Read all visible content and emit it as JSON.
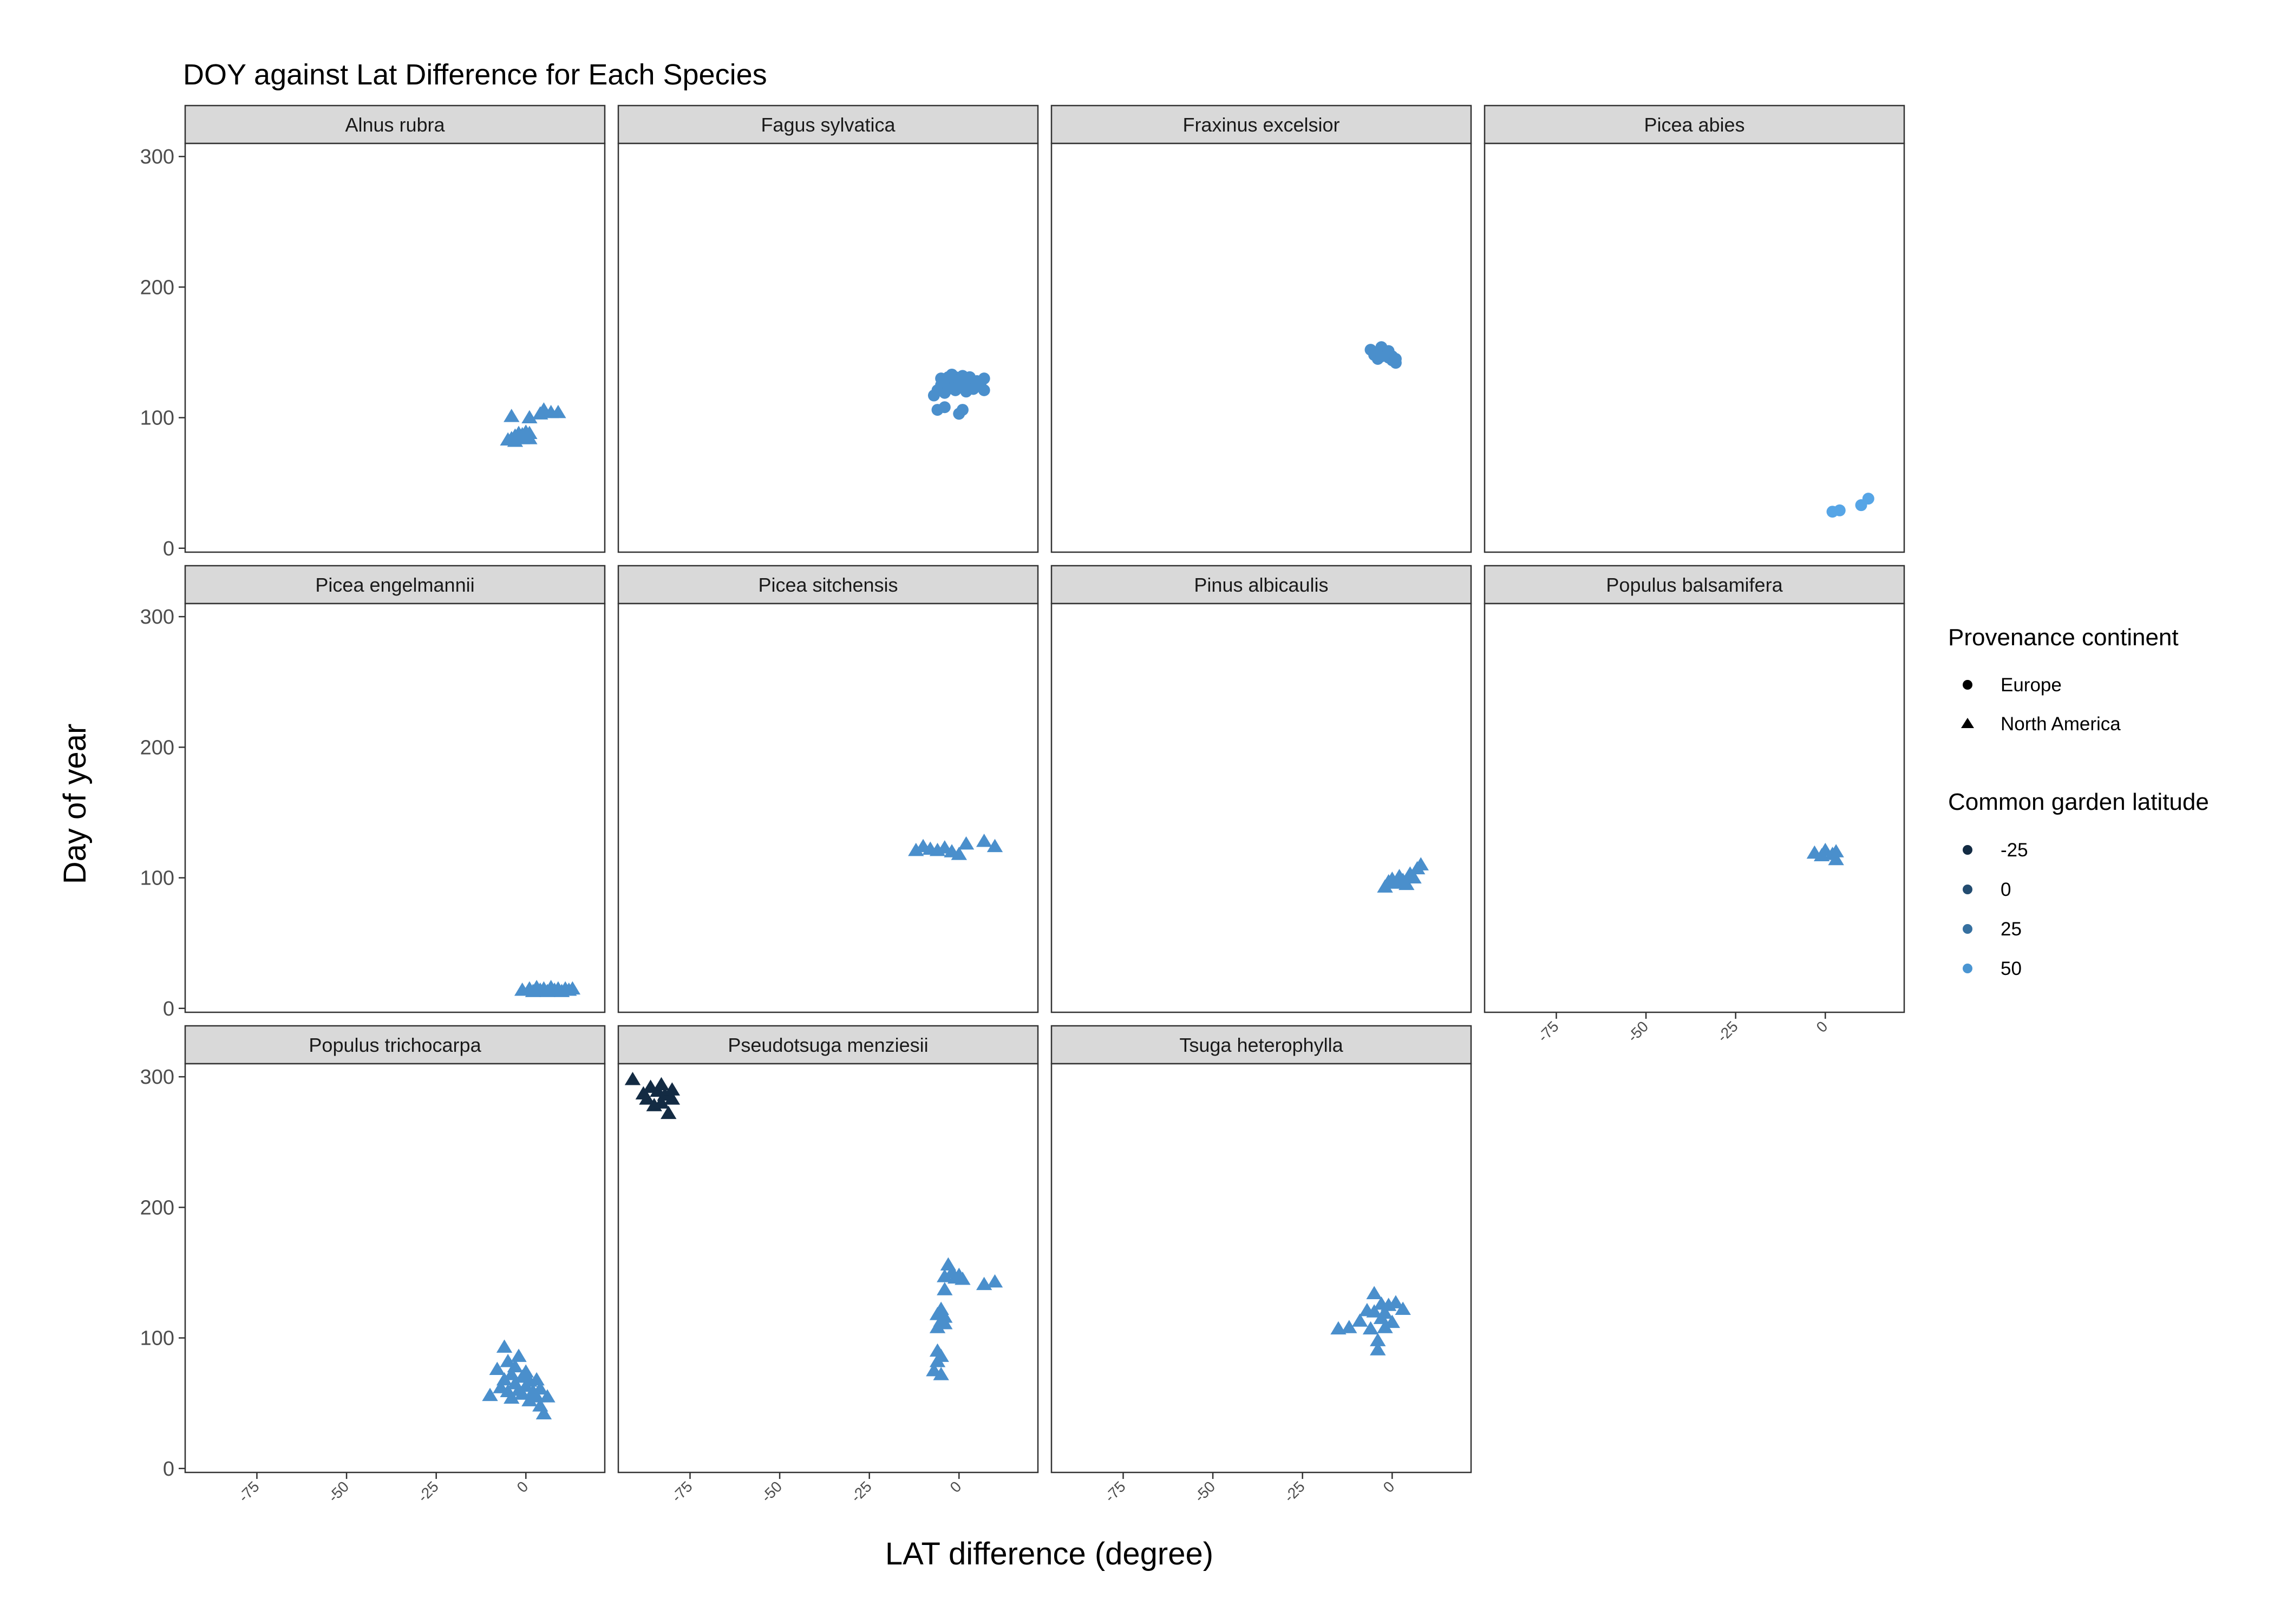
{
  "chart_data": {
    "type": "scatter",
    "title": "DOY against Lat Difference for Each Species",
    "xlabel": "LAT difference (degree)",
    "ylabel": "Day of year",
    "xlim": [
      -95,
      22
    ],
    "ylim": [
      -3,
      310
    ],
    "x_ticks": [
      -75,
      -50,
      -25,
      0
    ],
    "y_ticks": [
      0,
      100,
      200,
      300
    ],
    "grid": false,
    "ncol": 4,
    "legend": {
      "position": "right",
      "shape": {
        "title": "Provenance continent",
        "entries": [
          {
            "label": "Europe",
            "shape": "circle"
          },
          {
            "label": "North America",
            "shape": "triangle"
          }
        ]
      },
      "color": {
        "title": "Common garden latitude",
        "entries": [
          {
            "label": "-25",
            "color": "#132B43"
          },
          {
            "label": "0",
            "color": "#234C70"
          },
          {
            "label": "25",
            "color": "#3670A0"
          },
          {
            "label": "50",
            "color": "#4A95D2"
          }
        ]
      }
    },
    "panels": [
      {
        "label": "Alnus rubra",
        "series": [
          {
            "shape": "triangle",
            "color": "#4A8FCC",
            "points": [
              [
                -5,
                83
              ],
              [
                -4,
                84
              ],
              [
                -3,
                82
              ],
              [
                -3,
                86
              ],
              [
                -2,
                85
              ],
              [
                -2,
                88
              ],
              [
                -1,
                84
              ],
              [
                -1,
                87
              ],
              [
                0,
                86
              ],
              [
                0,
                89
              ],
              [
                1,
                84
              ],
              [
                1,
                88
              ],
              [
                -4,
                101
              ],
              [
                1,
                100
              ],
              [
                4,
                103
              ],
              [
                5,
                106
              ],
              [
                7,
                104
              ],
              [
                9,
                104
              ]
            ]
          }
        ]
      },
      {
        "label": "Fagus sylvatica",
        "series": [
          {
            "shape": "circle",
            "color": "#4A8FCC",
            "points": [
              [
                -7,
                117
              ],
              [
                -6,
                121
              ],
              [
                -5,
                125
              ],
              [
                -5,
                130
              ],
              [
                -4,
                128
              ],
              [
                -4,
                119
              ],
              [
                -3,
                131
              ],
              [
                -3,
                126
              ],
              [
                -3,
                122
              ],
              [
                -2,
                133
              ],
              [
                -2,
                129
              ],
              [
                -2,
                124
              ],
              [
                -1,
                127
              ],
              [
                -1,
                131
              ],
              [
                -1,
                121
              ],
              [
                0,
                125
              ],
              [
                0,
                129
              ],
              [
                1,
                132
              ],
              [
                1,
                124
              ],
              [
                2,
                128
              ],
              [
                2,
                120
              ],
              [
                3,
                126
              ],
              [
                3,
                131
              ],
              [
                4,
                122
              ],
              [
                5,
                128
              ],
              [
                6,
                125
              ],
              [
                7,
                130
              ],
              [
                7,
                121
              ],
              [
                -6,
                106
              ],
              [
                -4,
                108
              ],
              [
                0,
                103
              ],
              [
                1,
                106
              ]
            ]
          }
        ]
      },
      {
        "label": "Fraxinus excelsior",
        "series": [
          {
            "shape": "circle",
            "color": "#4A8FCC",
            "points": [
              [
                -6,
                152
              ],
              [
                -5,
                148
              ],
              [
                -4,
                150
              ],
              [
                -4,
                145
              ],
              [
                -3,
                154
              ],
              [
                -3,
                147
              ],
              [
                -2,
                149
              ],
              [
                -1,
                146
              ],
              [
                -1,
                151
              ],
              [
                0,
                144
              ],
              [
                0,
                147
              ],
              [
                1,
                142
              ],
              [
                1,
                145
              ]
            ]
          }
        ]
      },
      {
        "label": "Picea abies",
        "series": [
          {
            "shape": "circle",
            "color": "#56A5E6",
            "points": [
              [
                2,
                28
              ],
              [
                4,
                29
              ],
              [
                10,
                33
              ],
              [
                12,
                38
              ]
            ]
          }
        ]
      },
      {
        "label": "Picea engelmannii",
        "series": [
          {
            "shape": "triangle",
            "color": "#4A8FCC",
            "points": [
              [
                -1,
                14
              ],
              [
                1,
                15
              ],
              [
                2,
                13
              ],
              [
                3,
                16
              ],
              [
                4,
                14
              ],
              [
                5,
                15
              ],
              [
                6,
                13
              ],
              [
                7,
                16
              ],
              [
                8,
                14
              ],
              [
                9,
                15
              ],
              [
                10,
                13
              ],
              [
                11,
                15
              ],
              [
                12,
                14
              ],
              [
                13,
                15
              ]
            ]
          }
        ]
      },
      {
        "label": "Picea sitchensis",
        "series": [
          {
            "shape": "triangle",
            "color": "#4A8FCC",
            "points": [
              [
                -12,
                121
              ],
              [
                -10,
                124
              ],
              [
                -8,
                122
              ],
              [
                -6,
                121
              ],
              [
                -4,
                123
              ],
              [
                -2,
                120
              ],
              [
                0,
                118
              ],
              [
                2,
                126
              ],
              [
                7,
                128
              ],
              [
                10,
                124
              ]
            ]
          }
        ]
      },
      {
        "label": "Pinus albicaulis",
        "series": [
          {
            "shape": "triangle",
            "color": "#4A8FCC",
            "points": [
              [
                -2,
                93
              ],
              [
                -1,
                97
              ],
              [
                0,
                99
              ],
              [
                1,
                96
              ],
              [
                2,
                101
              ],
              [
                3,
                98
              ],
              [
                4,
                95
              ],
              [
                5,
                103
              ],
              [
                6,
                100
              ],
              [
                7,
                107
              ],
              [
                8,
                110
              ]
            ]
          }
        ]
      },
      {
        "label": "Populus balsamifera",
        "series": [
          {
            "shape": "triangle",
            "color": "#4A8FCC",
            "points": [
              [
                -3,
                119
              ],
              [
                -1,
                117
              ],
              [
                0,
                121
              ],
              [
                2,
                118
              ],
              [
                3,
                114
              ],
              [
                3,
                120
              ]
            ]
          }
        ]
      },
      {
        "label": "Populus trichocarpa",
        "series": [
          {
            "shape": "triangle",
            "color": "#4A8FCC",
            "points": [
              [
                -10,
                56
              ],
              [
                -8,
                76
              ],
              [
                -7,
                62
              ],
              [
                -6,
                93
              ],
              [
                -6,
                68
              ],
              [
                -5,
                59
              ],
              [
                -5,
                82
              ],
              [
                -4,
                72
              ],
              [
                -4,
                54
              ],
              [
                -3,
                65
              ],
              [
                -3,
                78
              ],
              [
                -2,
                60
              ],
              [
                -2,
                86
              ],
              [
                -1,
                70
              ],
              [
                -1,
                57
              ],
              [
                0,
                74
              ],
              [
                0,
                63
              ],
              [
                1,
                52
              ],
              [
                1,
                67
              ],
              [
                2,
                59
              ],
              [
                3,
                55
              ],
              [
                3,
                68
              ],
              [
                4,
                48
              ],
              [
                4,
                61
              ],
              [
                5,
                42
              ],
              [
                6,
                55
              ]
            ]
          }
        ]
      },
      {
        "label": "Pseudotsuga menziesii",
        "series": [
          {
            "shape": "triangle",
            "color": "#132B43",
            "points": [
              [
                -91,
                298
              ],
              [
                -88,
                287
              ],
              [
                -87,
                283
              ],
              [
                -86,
                292
              ],
              [
                -85,
                278
              ],
              [
                -84,
                289
              ],
              [
                -83,
                280
              ],
              [
                -83,
                294
              ],
              [
                -82,
                286
              ],
              [
                -81,
                272
              ],
              [
                -80,
                290
              ],
              [
                -80,
                283
              ]
            ]
          },
          {
            "shape": "triangle",
            "color": "#4A8FCC",
            "points": [
              [
                -7,
                75
              ],
              [
                -6,
                82
              ],
              [
                -6,
                90
              ],
              [
                -5,
                72
              ],
              [
                -5,
                86
              ],
              [
                -6,
                108
              ],
              [
                -5,
                113
              ],
              [
                -6,
                118
              ],
              [
                -5,
                122
              ],
              [
                -4,
                111
              ],
              [
                -4,
                116
              ],
              [
                -4,
                137
              ],
              [
                -4,
                147
              ],
              [
                -3,
                156
              ],
              [
                -2,
                150
              ],
              [
                -1,
                146
              ],
              [
                0,
                148
              ],
              [
                1,
                145
              ],
              [
                7,
                141
              ],
              [
                10,
                143
              ]
            ]
          }
        ]
      },
      {
        "label": "Tsuga heterophylla",
        "series": [
          {
            "shape": "triangle",
            "color": "#4A8FCC",
            "points": [
              [
                -15,
                107
              ],
              [
                -12,
                108
              ],
              [
                -9,
                113
              ],
              [
                -7,
                121
              ],
              [
                -6,
                107
              ],
              [
                -5,
                134
              ],
              [
                -5,
                120
              ],
              [
                -4,
                91
              ],
              [
                -4,
                98
              ],
              [
                -3,
                115
              ],
              [
                -3,
                126
              ],
              [
                -2,
                108
              ],
              [
                -2,
                119
              ],
              [
                -1,
                125
              ],
              [
                0,
                112
              ],
              [
                1,
                127
              ],
              [
                3,
                122
              ]
            ]
          }
        ]
      }
    ]
  }
}
